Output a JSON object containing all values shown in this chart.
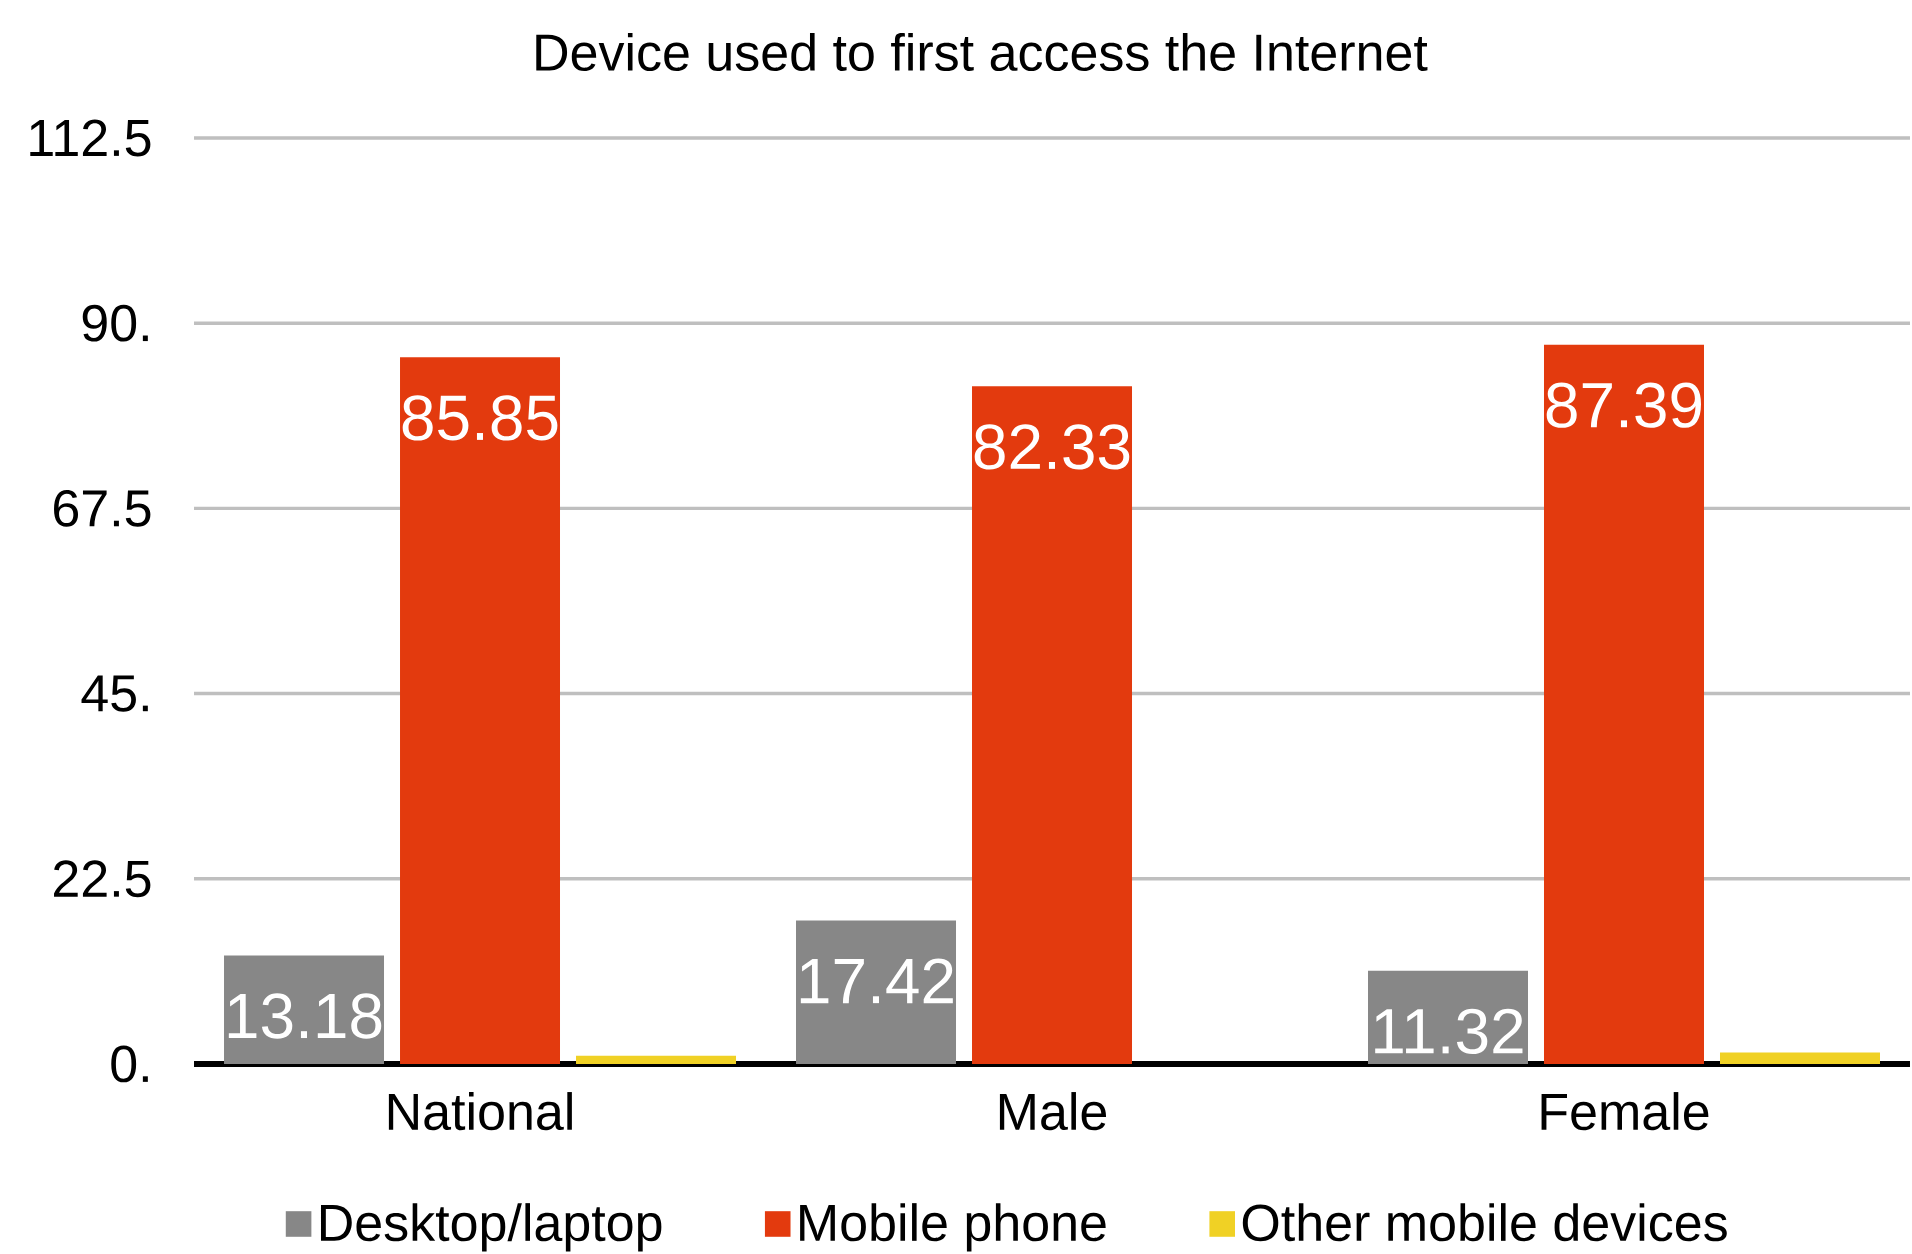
{
  "chart_data": {
    "type": "bar",
    "title": "Device used to first access the Internet",
    "categories": [
      "National",
      "Male",
      "Female"
    ],
    "series": [
      {
        "name": "Desktop/laptop",
        "color": "#878787",
        "values": [
          13.18,
          17.42,
          11.32
        ],
        "value_labels": [
          "13.18",
          "17.42",
          "11.32"
        ]
      },
      {
        "name": "Mobile phone",
        "color": "#e33a0e",
        "values": [
          85.85,
          82.33,
          87.39
        ],
        "value_labels": [
          "85.85",
          "82.33",
          "87.39"
        ]
      },
      {
        "name": "Other mobile devices",
        "color": "#f0d125",
        "values": [
          1,
          null,
          1.4
        ]
      }
    ],
    "ylim": [
      0,
      112.5
    ],
    "yticks": [
      {
        "value": 0,
        "label": "0."
      },
      22.5,
      {
        "value": 45,
        "label": "45."
      },
      67.5,
      {
        "value": 90,
        "label": "90."
      },
      112.5
    ],
    "grid": "y",
    "legend": "bottom"
  }
}
